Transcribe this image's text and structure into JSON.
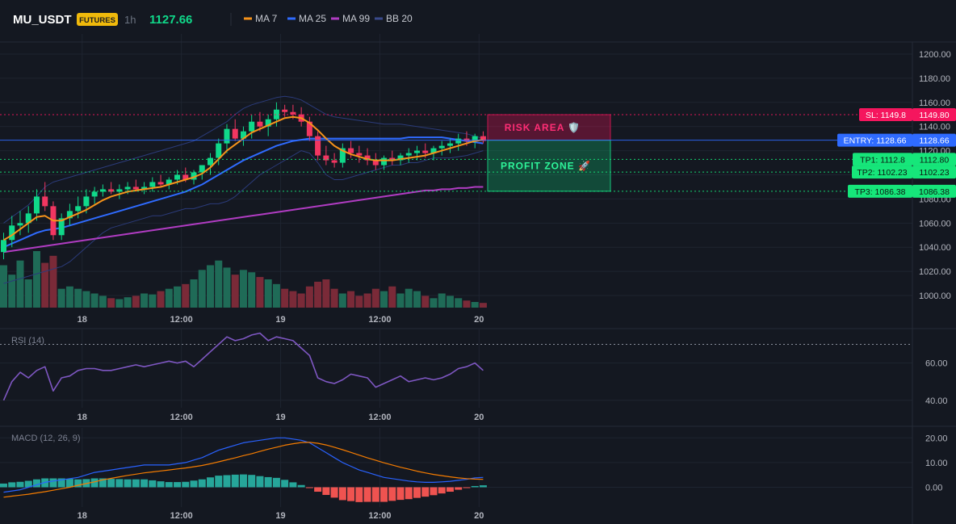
{
  "header": {
    "symbol": "MU_USDT",
    "badge": "FUTURES",
    "interval": "1h",
    "last_price": "1127.66",
    "indicators": [
      {
        "label": "MA 7",
        "color": "#f7931a"
      },
      {
        "label": "MA 25",
        "color": "#2f6bff"
      },
      {
        "label": "MA 99",
        "color": "#b03cc2"
      },
      {
        "label": "BB 20",
        "color": "#3a4a8c"
      }
    ]
  },
  "colors": {
    "background": "#141821",
    "up": "#10d98a",
    "down": "#f23661",
    "grid": "#1e2430",
    "axis_text": "#b2b5be",
    "ma7": "#f7931a",
    "ma25": "#2f6bff",
    "ma99": "#b03cc2",
    "bb": "#2b3b7a",
    "rsi": "#7e57c2",
    "macd": "#2962ff",
    "signal": "#f57c00",
    "hist_up": "#26a69a",
    "hist_down": "#ef5350",
    "sl": "#f5165e",
    "entry": "#2f6bff",
    "tp": "#16e67a"
  },
  "x_axis": {
    "labels": [
      {
        "text": "18",
        "x": 9.5
      },
      {
        "text": "12:00",
        "x": 21.5
      },
      {
        "text": "19",
        "x": 33.5
      },
      {
        "text": "12:00",
        "x": 45.5
      },
      {
        "text": "20",
        "x": 57.5
      }
    ]
  },
  "levels": {
    "sl": {
      "label": "SL: 1149.8",
      "value": 1149.8,
      "axis_label": "1149.80"
    },
    "entry": {
      "label": "ENTRY: 1128.66",
      "value": 1128.66,
      "axis_label": "1128.66"
    },
    "tps": [
      {
        "label": "TP1: 1112.8",
        "value": 1112.8,
        "axis_label": "1112.80"
      },
      {
        "label": "TP2: 1102.23",
        "value": 1102.23,
        "axis_label": "1102.23"
      },
      {
        "label": "TP3: 1086.38",
        "value": 1086.38,
        "axis_label": "1086.38"
      }
    ],
    "risk_label": "RISK AREA 🛡️",
    "profit_label": "PROFIT ZONE 🚀"
  },
  "chart_data": [
    {
      "type": "candlestick",
      "title": "",
      "ylim": [
        990,
        1210
      ],
      "yticks": [
        1000,
        1020,
        1040,
        1060,
        1080,
        1100,
        1120,
        1140,
        1160,
        1180,
        1200
      ],
      "candles": [
        [
          1036,
          1052,
          1030,
          1046
        ],
        [
          1046,
          1066,
          1040,
          1058
        ],
        [
          1058,
          1070,
          1050,
          1060
        ],
        [
          1060,
          1074,
          1052,
          1068
        ],
        [
          1068,
          1088,
          1062,
          1082
        ],
        [
          1082,
          1094,
          1070,
          1074
        ],
        [
          1074,
          1078,
          1046,
          1050
        ],
        [
          1050,
          1068,
          1046,
          1064
        ],
        [
          1064,
          1076,
          1058,
          1070
        ],
        [
          1070,
          1082,
          1064,
          1074
        ],
        [
          1074,
          1088,
          1068,
          1082
        ],
        [
          1082,
          1090,
          1076,
          1086
        ],
        [
          1086,
          1092,
          1082,
          1088
        ],
        [
          1088,
          1094,
          1084,
          1086
        ],
        [
          1086,
          1092,
          1080,
          1088
        ],
        [
          1088,
          1094,
          1084,
          1090
        ],
        [
          1090,
          1096,
          1086,
          1088
        ],
        [
          1088,
          1094,
          1084,
          1090
        ],
        [
          1090,
          1098,
          1086,
          1094
        ],
        [
          1094,
          1100,
          1090,
          1092
        ],
        [
          1092,
          1098,
          1088,
          1096
        ],
        [
          1096,
          1104,
          1092,
          1100
        ],
        [
          1100,
          1106,
          1094,
          1096
        ],
        [
          1096,
          1104,
          1092,
          1102
        ],
        [
          1102,
          1108,
          1096,
          1108
        ],
        [
          1108,
          1118,
          1100,
          1114
        ],
        [
          1114,
          1130,
          1108,
          1126
        ],
        [
          1126,
          1142,
          1118,
          1138
        ],
        [
          1138,
          1146,
          1128,
          1130
        ],
        [
          1130,
          1140,
          1124,
          1136
        ],
        [
          1136,
          1150,
          1130,
          1144
        ],
        [
          1144,
          1152,
          1136,
          1140
        ],
        [
          1140,
          1150,
          1132,
          1146
        ],
        [
          1146,
          1160,
          1140,
          1154
        ],
        [
          1154,
          1158,
          1148,
          1152
        ],
        [
          1152,
          1158,
          1146,
          1150
        ],
        [
          1150,
          1156,
          1140,
          1144
        ],
        [
          1144,
          1148,
          1128,
          1132
        ],
        [
          1132,
          1136,
          1112,
          1116
        ],
        [
          1116,
          1124,
          1108,
          1112
        ],
        [
          1112,
          1118,
          1106,
          1110
        ],
        [
          1110,
          1126,
          1106,
          1122
        ],
        [
          1122,
          1128,
          1114,
          1118
        ],
        [
          1118,
          1124,
          1110,
          1116
        ],
        [
          1116,
          1122,
          1108,
          1112
        ],
        [
          1112,
          1118,
          1104,
          1108
        ],
        [
          1108,
          1116,
          1104,
          1114
        ],
        [
          1114,
          1120,
          1108,
          1112
        ],
        [
          1112,
          1118,
          1108,
          1116
        ],
        [
          1116,
          1122,
          1110,
          1118
        ],
        [
          1118,
          1124,
          1112,
          1120
        ],
        [
          1120,
          1126,
          1114,
          1118
        ],
        [
          1118,
          1124,
          1112,
          1122
        ],
        [
          1122,
          1128,
          1116,
          1124
        ],
        [
          1124,
          1130,
          1118,
          1126
        ],
        [
          1126,
          1134,
          1120,
          1130
        ],
        [
          1130,
          1136,
          1124,
          1128
        ],
        [
          1128,
          1134,
          1122,
          1132
        ],
        [
          1132,
          1136,
          1126,
          1128
        ]
      ],
      "volume": [
        90,
        70,
        100,
        60,
        120,
        95,
        110,
        40,
        45,
        40,
        35,
        30,
        25,
        20,
        18,
        22,
        25,
        30,
        28,
        35,
        40,
        45,
        50,
        60,
        80,
        90,
        100,
        85,
        70,
        80,
        75,
        65,
        60,
        50,
        40,
        35,
        30,
        45,
        55,
        60,
        40,
        30,
        35,
        25,
        30,
        40,
        35,
        45,
        30,
        40,
        35,
        25,
        20,
        30,
        25,
        20,
        15,
        12,
        10
      ],
      "ma7": [
        1046,
        1050,
        1055,
        1060,
        1065,
        1066,
        1062,
        1062,
        1065,
        1068,
        1071,
        1075,
        1079,
        1082,
        1084,
        1086,
        1087,
        1088,
        1089,
        1090,
        1092,
        1094,
        1096,
        1098,
        1101,
        1106,
        1113,
        1120,
        1125,
        1130,
        1135,
        1138,
        1141,
        1144,
        1147,
        1148,
        1147,
        1143,
        1137,
        1130,
        1124,
        1120,
        1117,
        1115,
        1113,
        1112,
        1112,
        1112,
        1113,
        1114,
        1115,
        1116,
        1118,
        1120,
        1122,
        1124,
        1126,
        1128,
        1129
      ],
      "ma25": [
        1040,
        1043,
        1046,
        1049,
        1052,
        1054,
        1055,
        1056,
        1058,
        1060,
        1062,
        1064,
        1066,
        1068,
        1070,
        1072,
        1074,
        1076,
        1078,
        1080,
        1082,
        1084,
        1086,
        1089,
        1092,
        1096,
        1100,
        1104,
        1108,
        1112,
        1115,
        1118,
        1121,
        1124,
        1126,
        1128,
        1129,
        1130,
        1130,
        1130,
        1130,
        1130,
        1130,
        1130,
        1130,
        1130,
        1130,
        1130,
        1130,
        1131,
        1131,
        1131,
        1131,
        1131,
        1130,
        1129,
        1128,
        1127,
        1126
      ],
      "ma99": [
        1036,
        1037,
        1038,
        1039,
        1040,
        1041,
        1042,
        1043,
        1044,
        1045,
        1046,
        1047,
        1048,
        1049,
        1050,
        1051,
        1052,
        1053,
        1054,
        1055,
        1056,
        1057,
        1058,
        1059,
        1060,
        1061,
        1062,
        1063,
        1064,
        1065,
        1066,
        1067,
        1068,
        1069,
        1070,
        1071,
        1072,
        1073,
        1074,
        1075,
        1076,
        1077,
        1078,
        1079,
        1080,
        1081,
        1082,
        1083,
        1084,
        1085,
        1086,
        1087,
        1087,
        1088,
        1088,
        1089,
        1089,
        1090,
        1090
      ],
      "bb_upper": [
        1060,
        1065,
        1070,
        1075,
        1082,
        1090,
        1094,
        1096,
        1098,
        1100,
        1102,
        1104,
        1106,
        1108,
        1110,
        1112,
        1114,
        1116,
        1118,
        1120,
        1122,
        1124,
        1126,
        1128,
        1132,
        1136,
        1140,
        1144,
        1150,
        1155,
        1158,
        1160,
        1162,
        1164,
        1165,
        1164,
        1162,
        1158,
        1154,
        1150,
        1148,
        1147,
        1146,
        1145,
        1144,
        1143,
        1142,
        1142,
        1142,
        1141,
        1140,
        1139,
        1138,
        1137,
        1136,
        1135,
        1134,
        1132,
        1130
      ],
      "bb_lower": [
        1010,
        1012,
        1014,
        1016,
        1018,
        1020,
        1022,
        1024,
        1028,
        1034,
        1040,
        1046,
        1052,
        1056,
        1058,
        1060,
        1062,
        1064,
        1066,
        1066,
        1068,
        1070,
        1072,
        1072,
        1074,
        1076,
        1076,
        1078,
        1082,
        1088,
        1094,
        1100,
        1104,
        1108,
        1112,
        1116,
        1120,
        1118,
        1110,
        1100,
        1096,
        1096,
        1098,
        1100,
        1102,
        1104,
        1106,
        1108,
        1108,
        1110,
        1110,
        1112,
        1114,
        1114,
        1114,
        1115,
        1116,
        1118,
        1120
      ]
    },
    {
      "type": "line",
      "title": "RSI (14)",
      "ylim": [
        36,
        78
      ],
      "yticks": [
        40,
        60
      ],
      "overbought": 70,
      "values": [
        40,
        50,
        55,
        52,
        56,
        58,
        45,
        52,
        53,
        56,
        57,
        57,
        56,
        56,
        57,
        58,
        59,
        58,
        59,
        60,
        61,
        60,
        61,
        58,
        62,
        66,
        70,
        74,
        72,
        73,
        75,
        76,
        72,
        74,
        73,
        72,
        68,
        64,
        52,
        50,
        49,
        51,
        54,
        53,
        52,
        47,
        49,
        51,
        53,
        50,
        51,
        52,
        51,
        52,
        54,
        57,
        58,
        60,
        56
      ]
    },
    {
      "type": "line",
      "title": "MACD (12, 26, 9)",
      "ylim": [
        -8,
        24
      ],
      "yticks": [
        0,
        10,
        20
      ],
      "macd": [
        -2,
        -1.5,
        -1,
        0,
        1,
        2,
        2.5,
        3,
        3.5,
        4,
        5,
        6,
        6.5,
        7,
        7.5,
        8,
        8.5,
        9,
        9,
        9,
        9,
        9.5,
        10,
        11,
        12,
        13.5,
        15,
        16,
        17,
        18,
        18.5,
        19,
        19.5,
        20,
        20,
        19.5,
        19,
        18,
        16,
        14,
        12,
        10,
        8.5,
        7,
        6,
        5,
        4,
        3.5,
        3,
        2.5,
        2.2,
        2,
        2,
        2.2,
        2.4,
        2.8,
        3.2,
        3.8,
        4
      ],
      "signal": [
        -4,
        -3.6,
        -3.2,
        -2.8,
        -2.3,
        -1.8,
        -1.2,
        -0.6,
        0,
        0.8,
        1.5,
        2.2,
        3,
        3.6,
        4.2,
        4.8,
        5.3,
        5.8,
        6.2,
        6.6,
        7,
        7.4,
        7.8,
        8.3,
        8.8,
        9.5,
        10.3,
        11.1,
        11.9,
        12.8,
        13.6,
        14.5,
        15.4,
        16.2,
        17,
        17.6,
        18.1,
        18.2,
        17.8,
        17.1,
        16.2,
        15.2,
        14.1,
        13,
        11.9,
        10.9,
        9.9,
        9,
        8.1,
        7.3,
        6.5,
        5.8,
        5.2,
        4.7,
        4.2,
        3.8,
        3.5,
        3.3,
        3.2
      ],
      "histogram": [
        1.5,
        2,
        2.2,
        2.6,
        3.2,
        3.6,
        3.6,
        3.6,
        3.4,
        3.2,
        3.3,
        3.6,
        3.6,
        3.4,
        3.3,
        3.2,
        3.2,
        3.2,
        2.8,
        2.4,
        2.1,
        2.1,
        2.2,
        2.7,
        3.2,
        4,
        4.7,
        4.9,
        5.1,
        5.2,
        5,
        4.5,
        4.1,
        3.8,
        3,
        2,
        0.9,
        -0.2,
        -1.8,
        -3.1,
        -4.2,
        -5.2,
        -5.6,
        -6,
        -5.9,
        -5.9,
        -5.9,
        -5.5,
        -5.1,
        -4.8,
        -4.3,
        -3.8,
        -3.2,
        -2.5,
        -1.8,
        -1,
        -0.3,
        0.5,
        0.8
      ]
    }
  ]
}
